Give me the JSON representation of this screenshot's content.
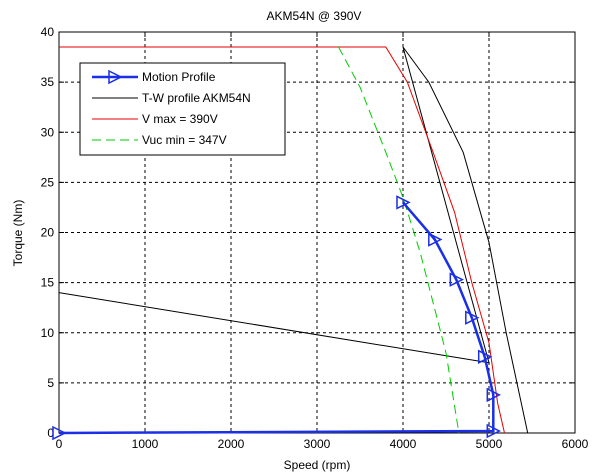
{
  "chart_data": {
    "type": "line",
    "title": "AKM54N @ 390V",
    "xlabel": "Speed (rpm)",
    "ylabel": "Torque (Nm)",
    "xlim": [
      0,
      6000
    ],
    "ylim": [
      0,
      40
    ],
    "xticks": [
      "0",
      "1000",
      "2000",
      "3000",
      "4000",
      "5000",
      "6000"
    ],
    "yticks": [
      "0",
      "5",
      "10",
      "15",
      "20",
      "25",
      "30",
      "35",
      "40"
    ],
    "grid": true,
    "legend_position": "top-left",
    "series": [
      {
        "name": "Motion Profile",
        "color": "#1a2fe6",
        "style": "solid-triangle-markers",
        "points": [
          [
            4000,
            23
          ],
          [
            4370,
            19.3
          ],
          [
            4620,
            15.3
          ],
          [
            4800,
            11.5
          ],
          [
            4950,
            7.6
          ],
          [
            5050,
            3.8
          ],
          [
            5050,
            0.2
          ],
          [
            0,
            0
          ]
        ]
      },
      {
        "name": "T-W profile AKM54N",
        "color": "#000000",
        "style": "solid",
        "points": [
          [
            0,
            14
          ],
          [
            5000,
            7
          ],
          [
            4000,
            38.5
          ],
          [
            4300,
            35
          ],
          [
            4700,
            28
          ],
          [
            5000,
            19
          ],
          [
            5200,
            10
          ],
          [
            5450,
            0
          ]
        ]
      },
      {
        "name": "V max = 390V",
        "color": "#e60000",
        "style": "solid",
        "points": [
          [
            0,
            38.5
          ],
          [
            3800,
            38.5
          ],
          [
            4050,
            35
          ],
          [
            4350,
            28
          ],
          [
            4600,
            22
          ],
          [
            4800,
            15
          ],
          [
            5000,
            9
          ],
          [
            5100,
            3
          ],
          [
            5180,
            0
          ]
        ]
      },
      {
        "name": "Vuc min = 347V",
        "color": "#00cc00",
        "style": "dashed",
        "points": [
          [
            3250,
            38.5
          ],
          [
            3500,
            34.5
          ],
          [
            3800,
            28
          ],
          [
            4000,
            23.5
          ],
          [
            4200,
            18
          ],
          [
            4350,
            13
          ],
          [
            4500,
            8
          ],
          [
            4650,
            0
          ]
        ]
      }
    ]
  }
}
